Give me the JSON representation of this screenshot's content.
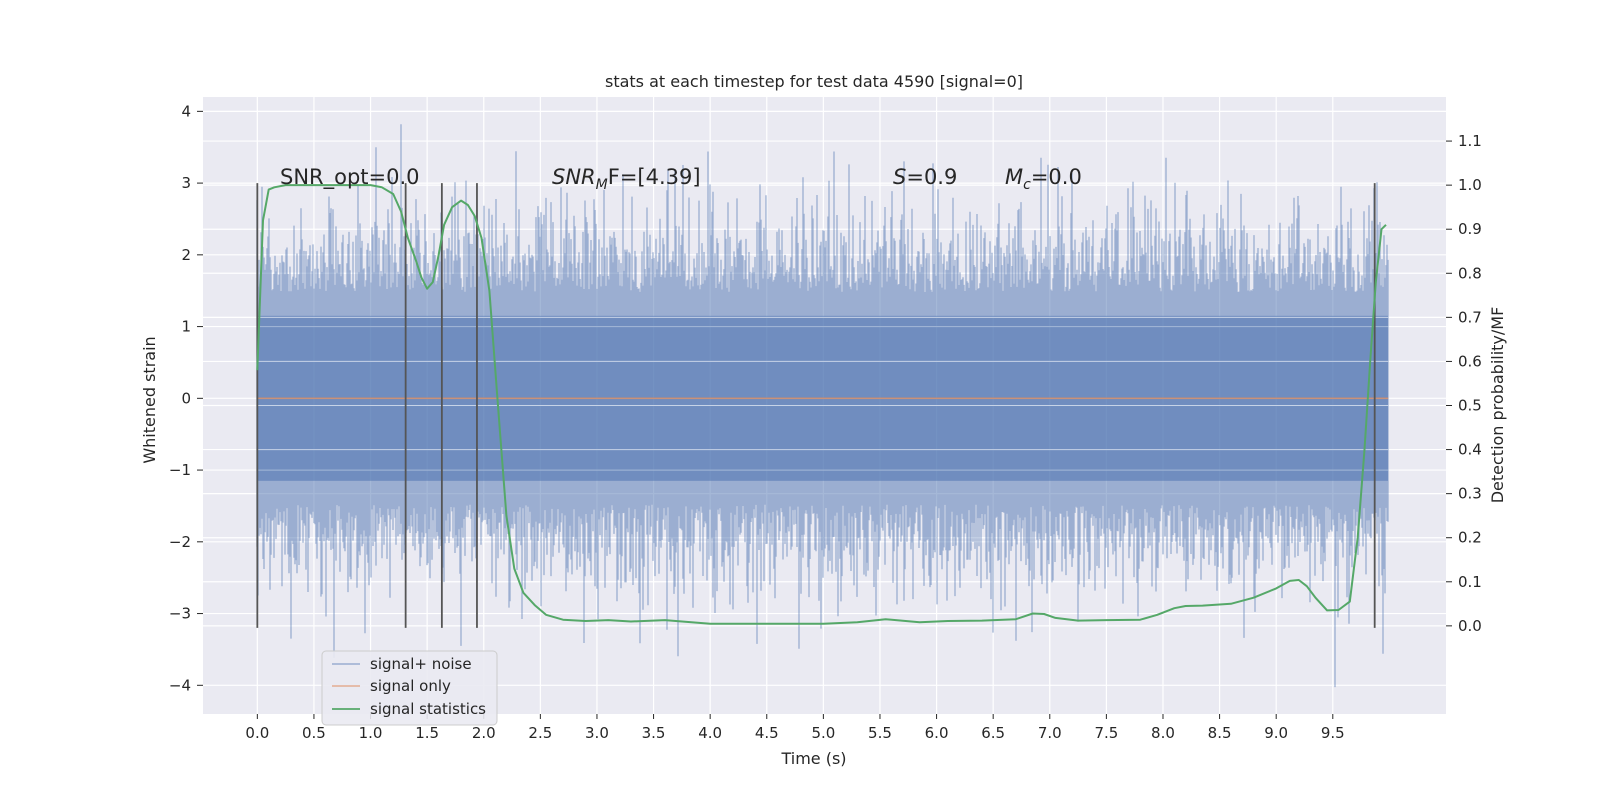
{
  "chart_data": {
    "type": "line",
    "title": "stats at each timestep for test data 4590 [signal=0]",
    "xlabel": "Time (s)",
    "ylabel_left": "Whitened strain",
    "ylabel_right": "Detection probability/MF",
    "xlim": [
      -0.48,
      10.5
    ],
    "ylim_left": [
      -4.4,
      4.2
    ],
    "ylim_right": [
      -0.2,
      1.2
    ],
    "x_ticks": [
      "0.0",
      "0.5",
      "1.0",
      "1.5",
      "2.0",
      "2.5",
      "3.0",
      "3.5",
      "4.0",
      "4.5",
      "5.0",
      "5.5",
      "6.0",
      "6.5",
      "7.0",
      "7.5",
      "8.0",
      "8.5",
      "9.0",
      "9.5"
    ],
    "y_ticks_left": [
      "-4",
      "-3",
      "-2",
      "-1",
      "0",
      "1",
      "2",
      "3",
      "4"
    ],
    "y_ticks_right": [
      "0.0",
      "0.1",
      "0.2",
      "0.3",
      "0.4",
      "0.5",
      "0.6",
      "0.7",
      "0.8",
      "0.9",
      "1.0",
      "1.1"
    ],
    "grid": true,
    "legend_position": "lower-left",
    "annotations": {
      "snr_opt": "SNR_opt=0.0",
      "snr_mf_prefix": "SNR",
      "snr_mf_sub": "M",
      "snr_mf_suffix": "F=[4.39]",
      "s_prefix": "S",
      "s_suffix": "=0.9",
      "mc_prefix": "M",
      "mc_sub": "c",
      "mc_suffix": "=0.0"
    },
    "series": [
      {
        "name": "signal+ noise",
        "color": "#4c72b0",
        "axis": "left",
        "x_range": [
          0.0,
          9.99
        ],
        "typical_amplitude": [
          -1.9,
          1.9
        ],
        "max_value": 3.82,
        "min_value": -4.05
      },
      {
        "name": "signal only",
        "color": "#dd8452",
        "axis": "left",
        "x": [
          0.0,
          9.99
        ],
        "y": [
          0.0,
          0.0
        ]
      },
      {
        "name": "signal statistics",
        "color": "#55a868",
        "axis": "right",
        "x": [
          0.0,
          0.05,
          0.1,
          0.15,
          0.25,
          0.4,
          0.6,
          0.8,
          1.0,
          1.1,
          1.2,
          1.27,
          1.33,
          1.4,
          1.45,
          1.5,
          1.55,
          1.6,
          1.65,
          1.72,
          1.8,
          1.86,
          1.92,
          1.98,
          2.05,
          2.12,
          2.2,
          2.27,
          2.35,
          2.45,
          2.55,
          2.7,
          2.9,
          3.1,
          3.3,
          3.6,
          4.0,
          4.5,
          5.0,
          5.3,
          5.55,
          5.85,
          6.1,
          6.4,
          6.7,
          6.85,
          6.95,
          7.05,
          7.25,
          7.5,
          7.8,
          7.95,
          8.1,
          8.2,
          8.35,
          8.6,
          8.8,
          9.0,
          9.12,
          9.2,
          9.27,
          9.35,
          9.45,
          9.55,
          9.65,
          9.72,
          9.78,
          9.83,
          9.88,
          9.93,
          9.97
        ],
        "y": [
          0.58,
          0.92,
          0.99,
          0.995,
          1.0,
          1.0,
          1.0,
          1.0,
          1.0,
          0.995,
          0.98,
          0.94,
          0.88,
          0.83,
          0.79,
          0.765,
          0.78,
          0.84,
          0.91,
          0.95,
          0.965,
          0.955,
          0.93,
          0.88,
          0.76,
          0.52,
          0.25,
          0.13,
          0.075,
          0.047,
          0.025,
          0.014,
          0.011,
          0.013,
          0.01,
          0.013,
          0.005,
          0.005,
          0.005,
          0.008,
          0.015,
          0.008,
          0.011,
          0.012,
          0.015,
          0.028,
          0.027,
          0.018,
          0.012,
          0.013,
          0.014,
          0.025,
          0.04,
          0.045,
          0.046,
          0.05,
          0.064,
          0.085,
          0.102,
          0.104,
          0.09,
          0.063,
          0.035,
          0.036,
          0.055,
          0.2,
          0.4,
          0.6,
          0.78,
          0.9,
          0.91
        ]
      }
    ],
    "vertical_markers": [
      {
        "x": 0.0,
        "y_range": [
          -3.2,
          3.0
        ]
      },
      {
        "x": 1.31,
        "y_range": [
          -3.2,
          3.0
        ]
      },
      {
        "x": 1.63,
        "y_range": [
          -3.2,
          3.0
        ]
      },
      {
        "x": 1.94,
        "y_range": [
          -3.2,
          3.0
        ]
      },
      {
        "x": 9.87,
        "y_range": [
          -3.2,
          3.0
        ]
      }
    ]
  }
}
